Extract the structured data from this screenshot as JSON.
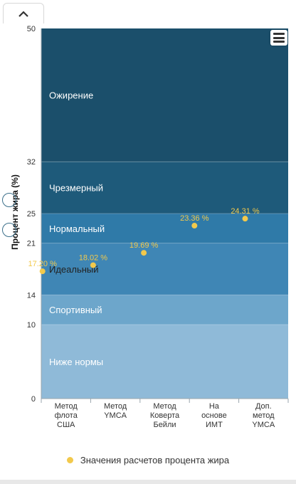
{
  "colors": {
    "accent": "#f2c94c",
    "bands": [
      "#8fbad8",
      "#6da6cb",
      "#3f86b5",
      "#2f7aa8",
      "#1e5a7a",
      "#1b4f6b"
    ]
  },
  "chart_data": {
    "type": "scatter",
    "ylabel": "Процент жира (%)",
    "ylim": [
      0,
      50
    ],
    "y_ticks": [
      0,
      10,
      14,
      21,
      25,
      32,
      50
    ],
    "categories": [
      "Метод флота США",
      "Метод YMCA",
      "Метод Коверта Бейли",
      "На основе ИМТ",
      "Доп. метод YMCA"
    ],
    "category_lines": [
      [
        "Метод",
        "флота",
        "США"
      ],
      [
        "Метод",
        "YMCA"
      ],
      [
        "Метод",
        "Коверта",
        "Бейли"
      ],
      [
        "На",
        "основе",
        "ИМТ"
      ],
      [
        "Доп.",
        "метод",
        "YMCA"
      ]
    ],
    "bands": [
      {
        "label": "Ниже нормы",
        "from": 0,
        "to": 10
      },
      {
        "label": "Спортивный",
        "from": 10,
        "to": 14
      },
      {
        "label": "Идеальный",
        "from": 14,
        "to": 21
      },
      {
        "label": "Нормальный",
        "from": 21,
        "to": 25
      },
      {
        "label": "Чрезмерный",
        "from": 25,
        "to": 32
      },
      {
        "label": "Ожирение",
        "from": 32,
        "to": 50
      }
    ],
    "series": [
      {
        "name": "Значения расчетов процента жира",
        "values": [
          17.2,
          18.02,
          19.69,
          23.36,
          24.31
        ],
        "labels": [
          "17.20 %",
          "18.02 %",
          "19.69 %",
          "23.36 %",
          "24.31 %"
        ]
      }
    ],
    "legend_position": "bottom"
  }
}
